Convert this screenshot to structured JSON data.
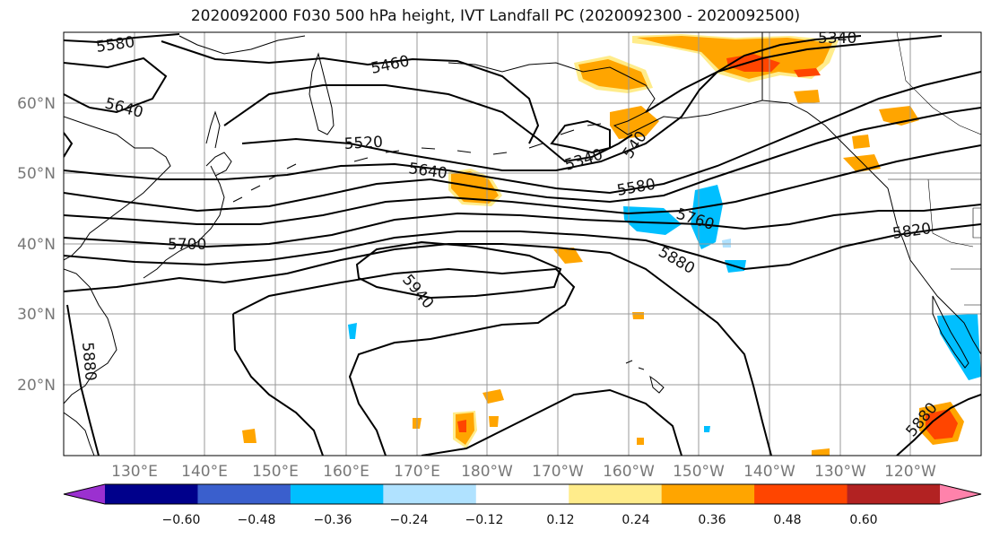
{
  "title": "2020092000 F030 500 hPa height, IVT Landfall PC (2020092300 - 2020092500)",
  "latitude_labels": [
    "60°N",
    "50°N",
    "40°N",
    "30°N",
    "20°N"
  ],
  "longitude_labels": [
    "130°E",
    "140°E",
    "150°E",
    "160°E",
    "170°E",
    "180°W",
    "170°W",
    "160°W",
    "150°W",
    "140°W",
    "130°W",
    "120°W"
  ],
  "colorbar": {
    "ticks": [
      "−0.60",
      "−0.48",
      "−0.36",
      "−0.24",
      "−0.12",
      "0.12",
      "0.24",
      "0.36",
      "0.48",
      "0.60"
    ],
    "colors": [
      "#9b30d0",
      "#00008b",
      "#3a5fcd",
      "#00bfff",
      "#b0e2ff",
      "#ffffff",
      "#ffec8b",
      "#ffa500",
      "#ff4500",
      "#b22222",
      "#ff82ab"
    ]
  },
  "contour_labels": [
    {
      "text": "5580"
    },
    {
      "text": "5640"
    },
    {
      "text": "5460"
    },
    {
      "text": "5520"
    },
    {
      "text": "5640"
    },
    {
      "text": "5340"
    },
    {
      "text": "540"
    },
    {
      "text": "5580"
    },
    {
      "text": "5760"
    },
    {
      "text": "5700"
    },
    {
      "text": "5820"
    },
    {
      "text": "5880"
    },
    {
      "text": "5940"
    },
    {
      "text": "5880"
    },
    {
      "text": "5880"
    },
    {
      "text": "5340"
    }
  ]
}
